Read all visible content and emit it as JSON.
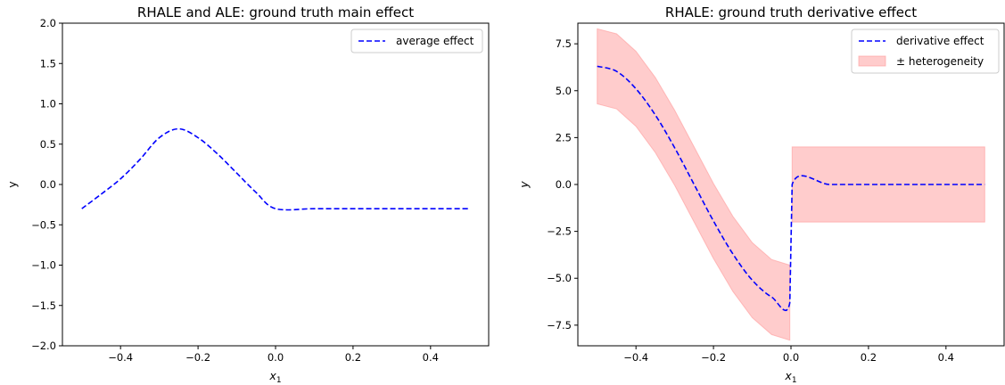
{
  "chart_data": [
    {
      "type": "line",
      "title": "RHALE and ALE: ground truth main effect",
      "xlabel": "x",
      "xlabel_subscript": "1",
      "ylabel": "y",
      "xlim": [
        -0.55,
        0.55
      ],
      "ylim": [
        -2.0,
        2.0
      ],
      "xticks": [
        -0.4,
        -0.2,
        0.0,
        0.2,
        0.4
      ],
      "xtick_labels": [
        "−0.4",
        "−0.2",
        "0.0",
        "0.2",
        "0.4"
      ],
      "yticks": [
        -2.0,
        -1.5,
        -1.0,
        -0.5,
        0.0,
        0.5,
        1.0,
        1.5,
        2.0
      ],
      "ytick_labels": [
        "−2.0",
        "−1.5",
        "−1.0",
        "−0.5",
        "0.0",
        "0.5",
        "1.0",
        "1.5",
        "2.0"
      ],
      "grid": false,
      "legend_position": "top-right",
      "series": [
        {
          "name": "average effect",
          "style": "dashed",
          "color": "#0000ff",
          "points": [
            [
              -0.5,
              -0.3
            ],
            [
              -0.45,
              -0.12
            ],
            [
              -0.4,
              0.07
            ],
            [
              -0.35,
              0.31
            ],
            [
              -0.3,
              0.58
            ],
            [
              -0.25,
              0.69
            ],
            [
              -0.2,
              0.58
            ],
            [
              -0.15,
              0.38
            ],
            [
              -0.1,
              0.14
            ],
            [
              -0.05,
              -0.1
            ],
            [
              0.0,
              -0.3
            ],
            [
              0.1,
              -0.3
            ],
            [
              0.2,
              -0.3
            ],
            [
              0.3,
              -0.3
            ],
            [
              0.4,
              -0.3
            ],
            [
              0.5,
              -0.3
            ]
          ]
        }
      ]
    },
    {
      "type": "line",
      "title": "RHALE: ground truth derivative effect",
      "xlabel": "x",
      "xlabel_subscript": "1",
      "ylabel": "y",
      "xlim": [
        -0.55,
        0.55
      ],
      "ylim": [
        -8.6,
        8.6
      ],
      "xticks": [
        -0.4,
        -0.2,
        0.0,
        0.2,
        0.4
      ],
      "xtick_labels": [
        "−0.4",
        "−0.2",
        "0.0",
        "0.2",
        "0.4"
      ],
      "yticks": [
        -7.5,
        -5.0,
        -2.5,
        0.0,
        2.5,
        5.0,
        7.5
      ],
      "ytick_labels": [
        "−7.5",
        "−5.0",
        "−2.5",
        "0.0",
        "2.5",
        "5.0",
        "7.5"
      ],
      "grid": false,
      "legend_position": "top-right",
      "series": [
        {
          "name": "derivative effect",
          "style": "dashed",
          "color": "#0000ff",
          "points": [
            [
              -0.5,
              6.3
            ],
            [
              -0.45,
              6.03
            ],
            [
              -0.4,
              5.1
            ],
            [
              -0.35,
              3.7
            ],
            [
              -0.3,
              1.95
            ],
            [
              -0.25,
              0.0
            ],
            [
              -0.2,
              -1.95
            ],
            [
              -0.15,
              -3.7
            ],
            [
              -0.1,
              -5.1
            ],
            [
              -0.05,
              -6.0
            ],
            [
              -0.003,
              -6.3
            ],
            [
              0.003,
              0.0
            ],
            [
              0.1,
              0.0
            ],
            [
              0.2,
              0.0
            ],
            [
              0.3,
              0.0
            ],
            [
              0.4,
              0.0
            ],
            [
              0.5,
              0.0
            ]
          ]
        }
      ],
      "bands": [
        {
          "name": "± heterogeneity",
          "color": "#ff9999",
          "opacity": 0.5,
          "segments": [
            {
              "x": [
                -0.5,
                -0.45,
                -0.4,
                -0.35,
                -0.3,
                -0.25,
                -0.2,
                -0.15,
                -0.1,
                -0.05,
                -0.003
              ],
              "low": [
                4.3,
                4.03,
                3.1,
                1.7,
                -0.05,
                -2.0,
                -3.95,
                -5.7,
                -7.1,
                -8.0,
                -8.3
              ],
              "high": [
                8.3,
                8.03,
                7.1,
                5.7,
                3.95,
                2.0,
                0.05,
                -1.7,
                -3.1,
                -4.0,
                -4.3
              ]
            },
            {
              "x": [
                0.003,
                0.5
              ],
              "low": [
                -2.0,
                -2.0
              ],
              "high": [
                2.0,
                2.0
              ]
            }
          ]
        }
      ]
    }
  ]
}
